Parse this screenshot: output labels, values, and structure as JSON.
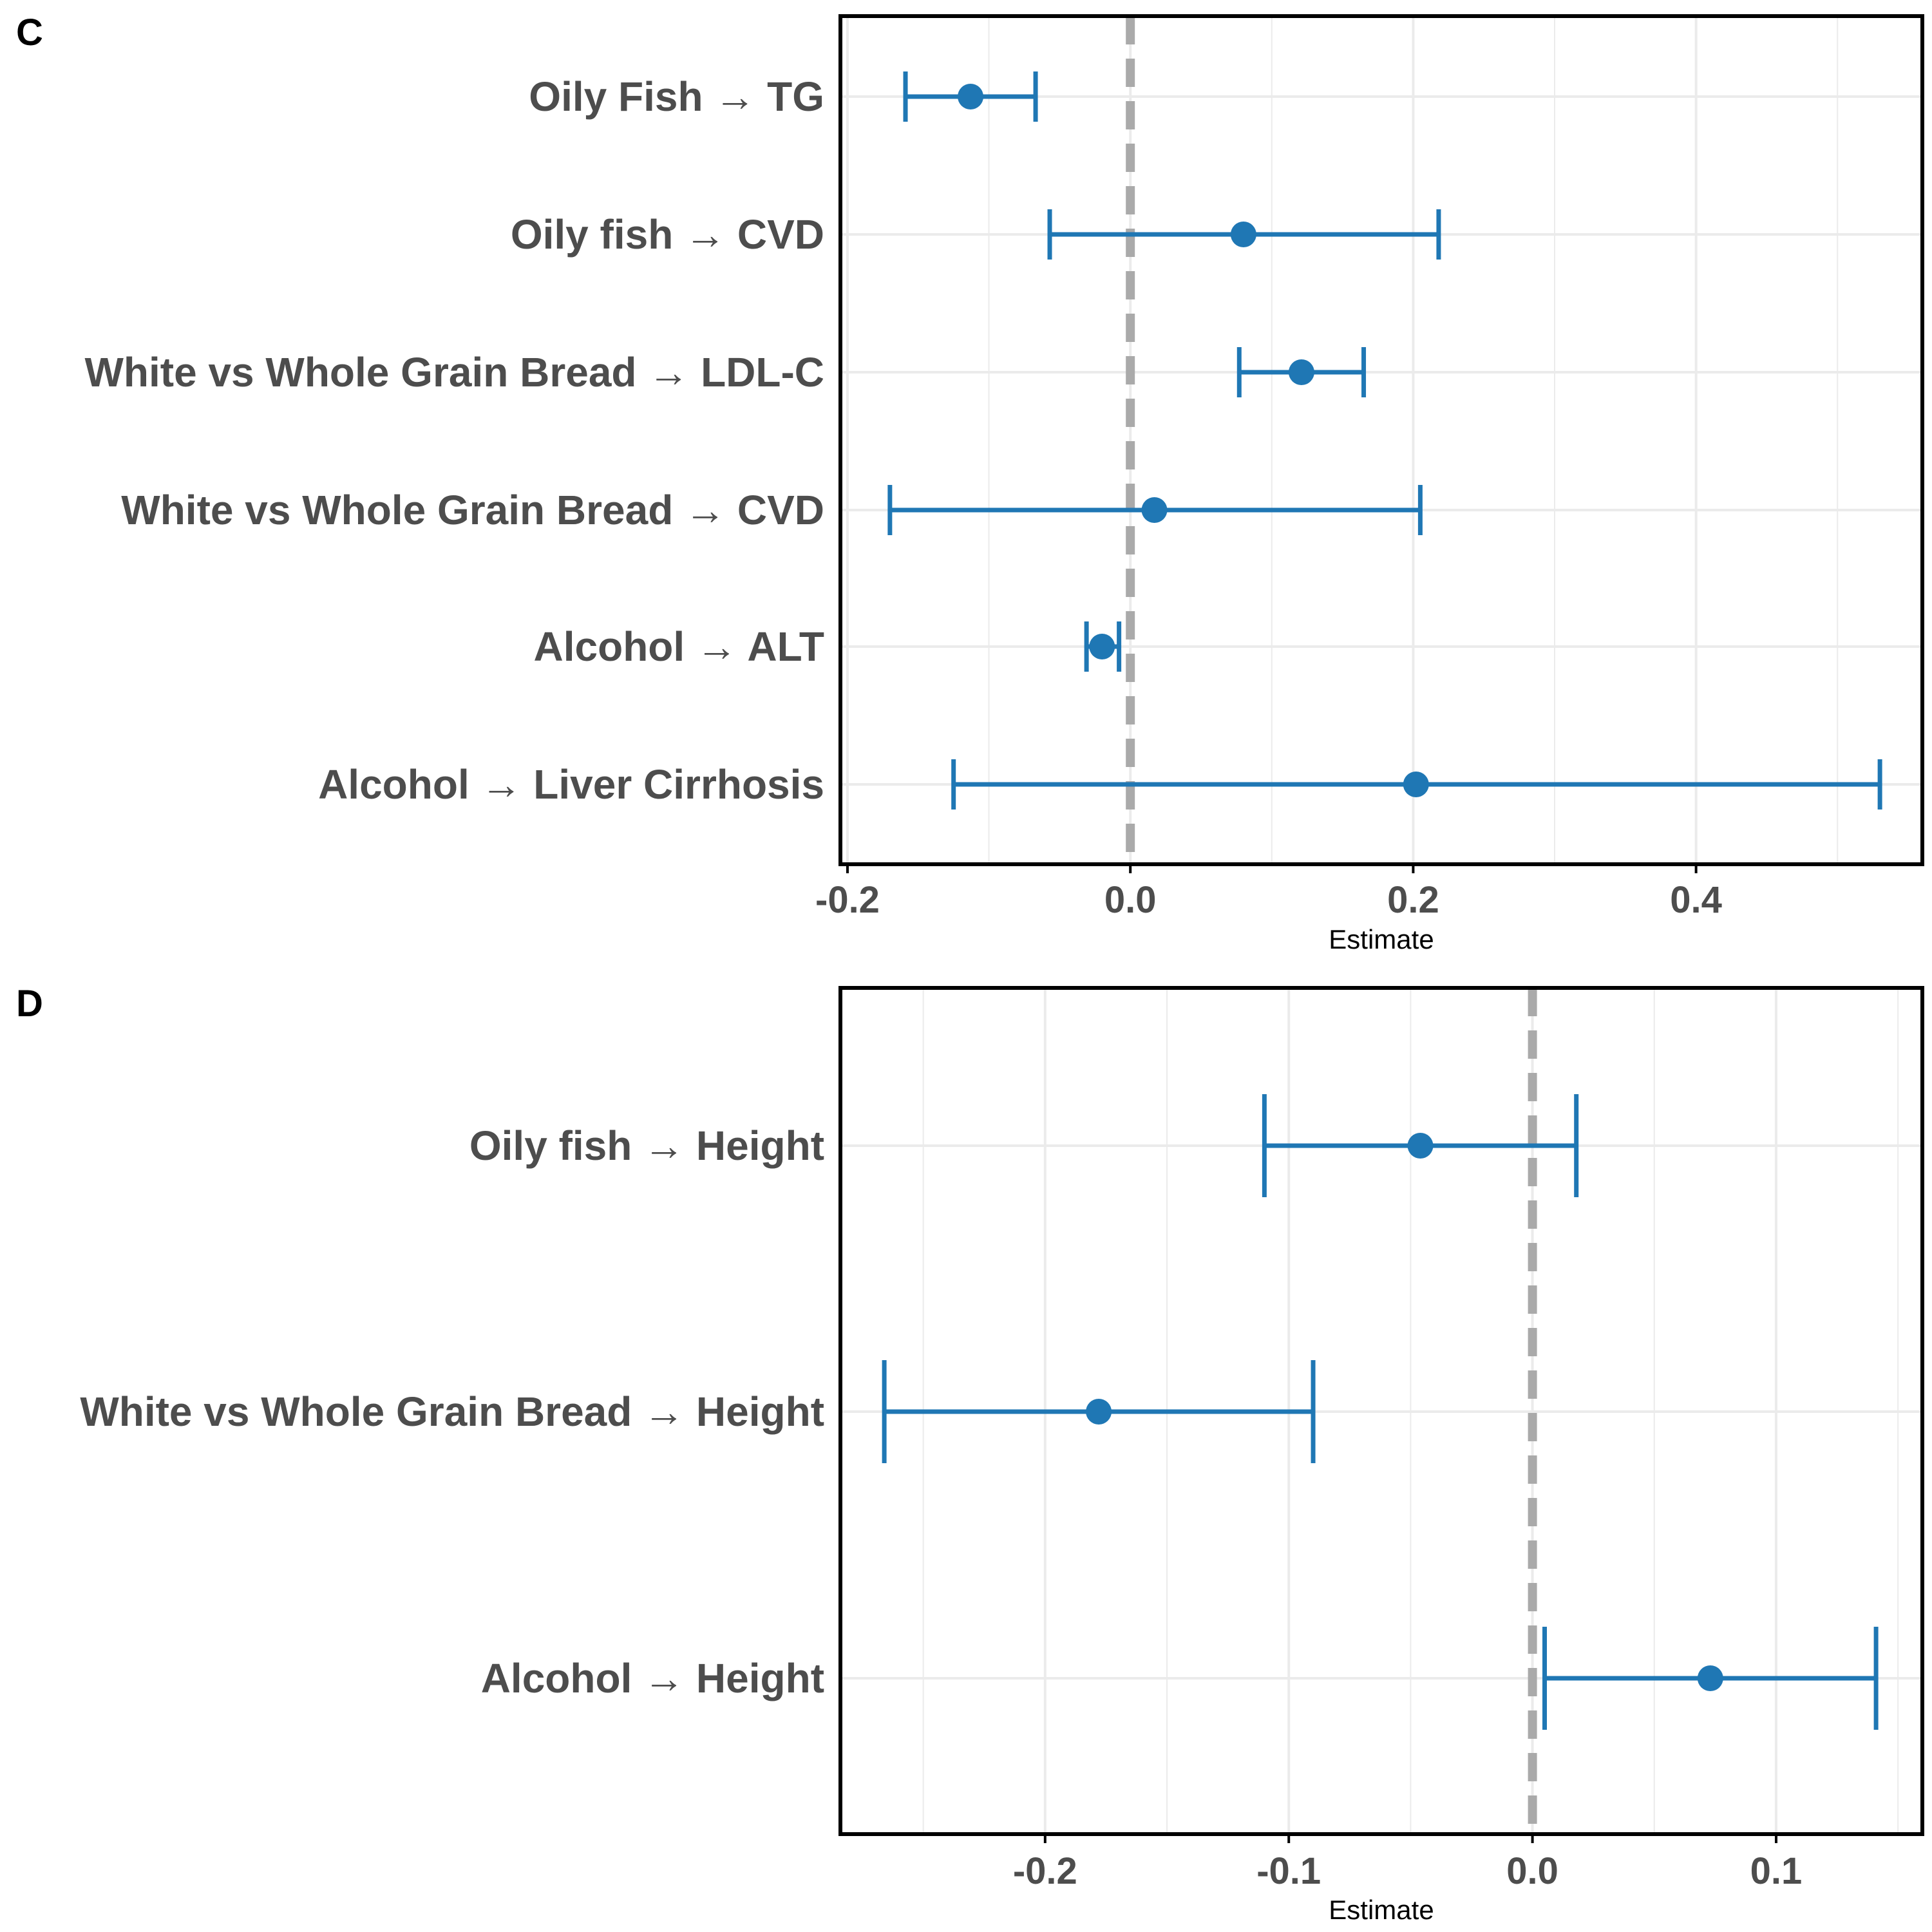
{
  "colors": {
    "point": "#1f77b4",
    "zero_line": "#aaaaaa",
    "grid": "#ebebeb",
    "frame": "#000000",
    "label": "#4d4d4d"
  },
  "chart_data": [
    {
      "panel": "C",
      "type": "forest",
      "xlabel": "Estimate",
      "xlim": [
        -0.205,
        0.56
      ],
      "xticks": [
        -0.2,
        0.0,
        0.2,
        0.4
      ],
      "tick_labels": [
        "-0.2",
        "0.0",
        "0.2",
        "0.4"
      ],
      "reference_line": 0.0,
      "grid": true,
      "rows": [
        {
          "label": "Oily Fish → TG",
          "estimate": -0.113,
          "lower": -0.159,
          "upper": -0.067
        },
        {
          "label": "Oily fish → CVD",
          "estimate": 0.08,
          "lower": -0.057,
          "upper": 0.218
        },
        {
          "label": "White vs Whole Grain Bread → LDL-C",
          "estimate": 0.121,
          "lower": 0.077,
          "upper": 0.165
        },
        {
          "label": "White vs Whole Grain Bread → CVD",
          "estimate": 0.017,
          "lower": -0.17,
          "upper": 0.205
        },
        {
          "label": "Alcohol → ALT",
          "estimate": -0.02,
          "lower": -0.031,
          "upper": -0.008
        },
        {
          "label": "Alcohol → Liver Cirrhosis",
          "estimate": 0.202,
          "lower": -0.125,
          "upper": 0.53
        }
      ]
    },
    {
      "panel": "D",
      "type": "forest",
      "xlabel": "Estimate",
      "xlim": [
        -0.284,
        0.16
      ],
      "xticks": [
        -0.2,
        -0.1,
        0.0,
        0.1
      ],
      "tick_labels": [
        "-0.2",
        "-0.1",
        "0.0",
        "0.1"
      ],
      "reference_line": 0.0,
      "grid": true,
      "rows": [
        {
          "label": "Oily fish → Height",
          "estimate": -0.046,
          "lower": -0.11,
          "upper": 0.018
        },
        {
          "label": "White vs Whole Grain Bread → Height",
          "estimate": -0.178,
          "lower": -0.266,
          "upper": -0.09
        },
        {
          "label": "Alcohol → Height",
          "estimate": 0.073,
          "lower": 0.005,
          "upper": 0.141
        }
      ]
    }
  ]
}
